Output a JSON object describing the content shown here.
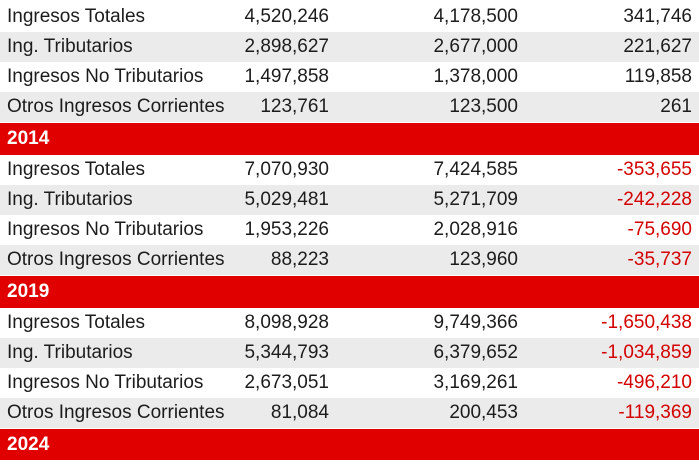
{
  "blocks": [
    {
      "rows": [
        {
          "label": "Ingresos Totales",
          "v1": "4,520,246",
          "v2": "4,178,500",
          "v3": "341,746"
        },
        {
          "label": "Ing. Tributarios",
          "v1": "2,898,627",
          "v2": "2,677,000",
          "v3": "221,627"
        },
        {
          "label": "Ingresos No Tributarios",
          "v1": "1,497,858",
          "v2": "1,378,000",
          "v3": "119,858"
        },
        {
          "label": "Otros Ingresos Corrientes",
          "v1": "123,761",
          "v2": "123,500",
          "v3": "261"
        }
      ]
    },
    {
      "year": "2014",
      "rows": [
        {
          "label": "Ingresos Totales",
          "v1": "7,070,930",
          "v2": "7,424,585",
          "v3": "-353,655"
        },
        {
          "label": "Ing. Tributarios",
          "v1": "5,029,481",
          "v2": "5,271,709",
          "v3": "-242,228"
        },
        {
          "label": "Ingresos No Tributarios",
          "v1": "1,953,226",
          "v2": "2,028,916",
          "v3": "-75,690"
        },
        {
          "label": "Otros Ingresos Corrientes",
          "v1": "88,223",
          "v2": "123,960",
          "v3": "-35,737"
        }
      ]
    },
    {
      "year": "2019",
      "rows": [
        {
          "label": "Ingresos Totales",
          "v1": "8,098,928",
          "v2": "9,749,366",
          "v3": "-1,650,438"
        },
        {
          "label": "Ing. Tributarios",
          "v1": "5,344,793",
          "v2": "6,379,652",
          "v3": "-1,034,859"
        },
        {
          "label": "Ingresos No Tributarios",
          "v1": "2,673,051",
          "v2": "3,169,261",
          "v3": "-496,210"
        },
        {
          "label": "Otros Ingresos Corrientes",
          "v1": "81,084",
          "v2": "200,453",
          "v3": "-119,369"
        }
      ]
    },
    {
      "year": "2024",
      "rows": []
    }
  ],
  "colors": {
    "header_bg": "#e00000",
    "negative": "#d40000",
    "alt_row": "#ebebeb"
  }
}
